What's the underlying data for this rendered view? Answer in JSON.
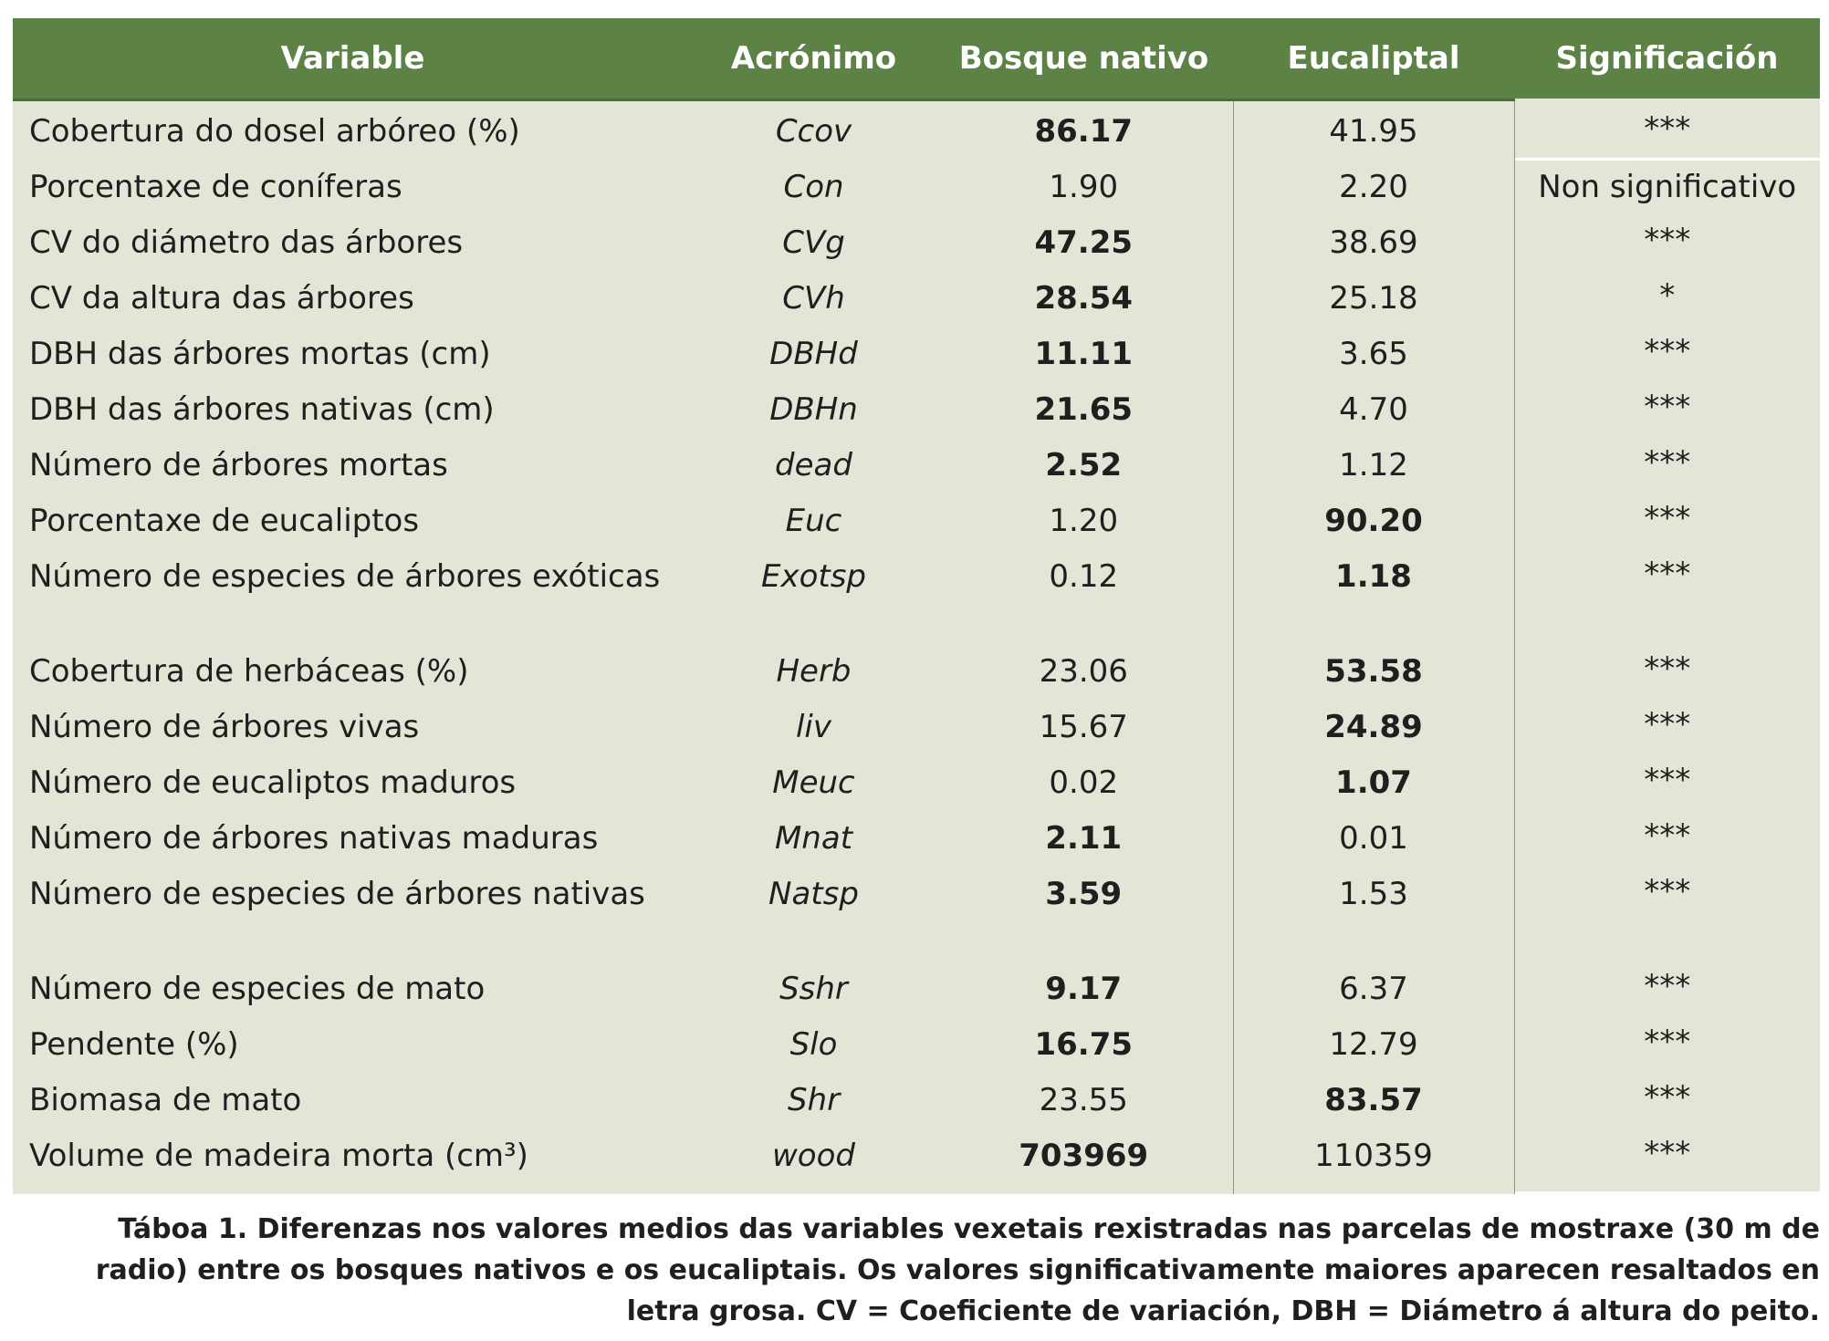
{
  "table": {
    "headers": [
      "Variable",
      "Acrónimo",
      "Bosque nativo",
      "Eucaliptal",
      "Significación"
    ],
    "rows": [
      {
        "variable": "Cobertura do dosel arbóreo (%)",
        "acronym": "Ccov",
        "native": "86.17",
        "euc": "41.95",
        "sig": "***",
        "bold": "native"
      },
      {
        "variable": "Porcentaxe de coníferas",
        "acronym": "Con",
        "native": "1.90",
        "euc": "2.20",
        "sig": "Non significativo",
        "bold": "none"
      },
      {
        "variable": "CV do diámetro das árbores",
        "acronym": "CVg",
        "native": "47.25",
        "euc": "38.69",
        "sig": "***",
        "bold": "native"
      },
      {
        "variable": "CV da altura das árbores",
        "acronym": "CVh",
        "native": "28.54",
        "euc": "25.18",
        "sig": "*",
        "bold": "native"
      },
      {
        "variable": "DBH das árbores mortas (cm)",
        "acronym": "DBHd",
        "native": "11.11",
        "euc": "3.65",
        "sig": "***",
        "bold": "native"
      },
      {
        "variable": "DBH das árbores nativas (cm)",
        "acronym": "DBHn",
        "native": "21.65",
        "euc": "4.70",
        "sig": "***",
        "bold": "native"
      },
      {
        "variable": "Número de árbores mortas",
        "acronym": "dead",
        "native": "2.52",
        "euc": "1.12",
        "sig": "***",
        "bold": "native"
      },
      {
        "variable": "Porcentaxe de eucaliptos",
        "acronym": "Euc",
        "native": "1.20",
        "euc": "90.20",
        "sig": "***",
        "bold": "euc"
      },
      {
        "variable": "Número de especies de árbores exóticas",
        "acronym": "Exotsp",
        "native": "0.12",
        "euc": "1.18",
        "sig": "***",
        "bold": "euc"
      },
      {
        "variable": "Cobertura de herbáceas (%)",
        "acronym": "Herb",
        "native": "23.06",
        "euc": "53.58",
        "sig": "***",
        "bold": "euc"
      },
      {
        "variable": "Número de árbores vivas",
        "acronym": "liv",
        "native": "15.67",
        "euc": "24.89",
        "sig": "***",
        "bold": "euc"
      },
      {
        "variable": "Número de eucaliptos maduros",
        "acronym": "Meuc",
        "native": "0.02",
        "euc": "1.07",
        "sig": "***",
        "bold": "euc"
      },
      {
        "variable": "Número de árbores nativas maduras",
        "acronym": "Mnat",
        "native": "2.11",
        "euc": "0.01",
        "sig": "***",
        "bold": "native"
      },
      {
        "variable": "Número de especies de árbores nativas",
        "acronym": "Natsp",
        "native": "3.59",
        "euc": "1.53",
        "sig": "***",
        "bold": "native"
      },
      {
        "variable": "Número de especies de mato",
        "acronym": "Sshr",
        "native": "9.17",
        "euc": "6.37",
        "sig": "***",
        "bold": "native"
      },
      {
        "variable": "Pendente (%)",
        "acronym": "Slo",
        "native": "16.75",
        "euc": "12.79",
        "sig": "***",
        "bold": "native"
      },
      {
        "variable": "Biomasa de mato",
        "acronym": "Shr",
        "native": "23.55",
        "euc": "83.57",
        "sig": "***",
        "bold": "euc"
      },
      {
        "variable": "Volume de madeira morta (cm³)",
        "acronym": "wood",
        "native": "703969",
        "euc": "110359",
        "sig": "***",
        "bold": "native"
      }
    ]
  },
  "caption": "Táboa 1. Diferenzas nos valores medios das variables vexetais rexistradas nas parcelas de mostraxe (30 m de radio) entre os bosques nativos e os eucaliptais. Os valores significativamente maiores aparecen resaltados en letra grosa. CV = Coeficiente de variación, DBH = Diámetro á altura do peito.",
  "colors": {
    "header_bg": "#5c8246",
    "body_bg": "#e3e5d6",
    "header_text": "#ffffff"
  }
}
